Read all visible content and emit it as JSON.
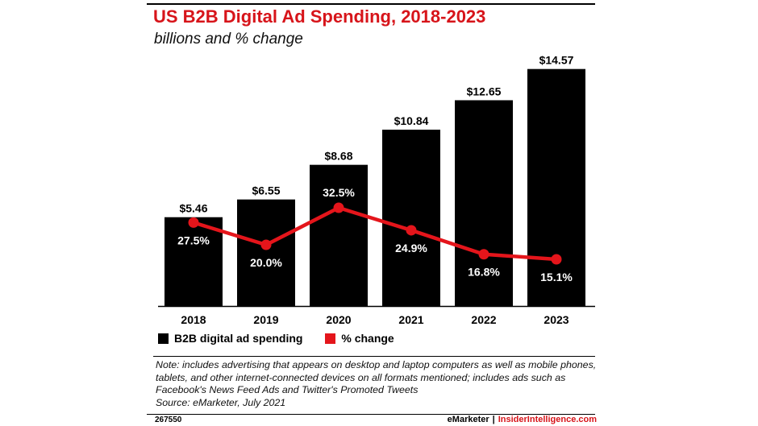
{
  "header": {
    "title": "US B2B Digital Ad Spending, 2018-2023",
    "subtitle": "billions and % change"
  },
  "chart_data": {
    "type": "bar",
    "categories": [
      "2018",
      "2019",
      "2020",
      "2021",
      "2022",
      "2023"
    ],
    "series": [
      {
        "name": "B2B digital ad spending",
        "type": "bar",
        "values": [
          5.46,
          6.55,
          8.68,
          10.84,
          12.65,
          14.57
        ],
        "labels": [
          "$5.46",
          "$6.55",
          "$8.68",
          "$10.84",
          "$12.65",
          "$14.57"
        ],
        "color": "#000000"
      },
      {
        "name": "% change",
        "type": "line",
        "values": [
          27.5,
          20.0,
          32.5,
          24.9,
          16.8,
          15.1
        ],
        "labels": [
          "27.5%",
          "20.0%",
          "32.5%",
          "24.9%",
          "16.8%",
          "15.1%"
        ],
        "color": "#e4151b"
      }
    ],
    "grid": false,
    "legend_placement": "bottom-left"
  },
  "note": {
    "text": "Note: includes advertising that appears on desktop and laptop computers as well as mobile phones, tablets, and other internet-connected devices on all formats mentioned; includes ads such as Facebook's News Feed Ads and Twitter's Promoted Tweets",
    "source": "Source: eMarketer, July 2021"
  },
  "footer": {
    "chart_id": "267550",
    "brand_left": "eMarketer",
    "brand_sep": "|",
    "brand_right": "InsiderIntelligence.com"
  }
}
